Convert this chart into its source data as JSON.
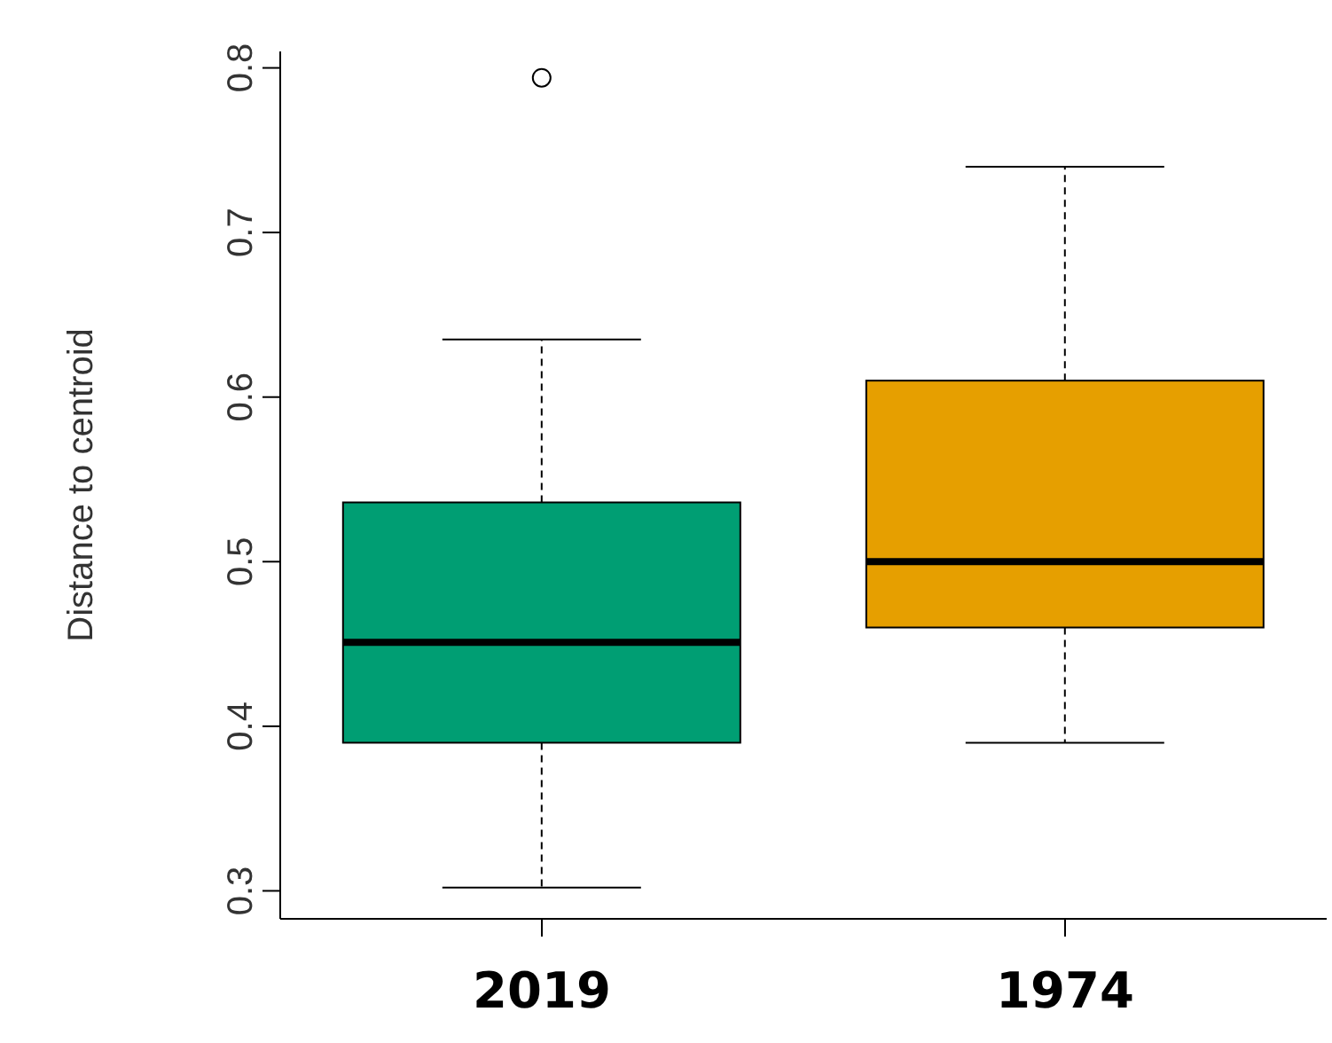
{
  "chart_data": {
    "type": "box",
    "ylabel": "Distance to centroid",
    "categories": [
      "2019",
      "1974"
    ],
    "colors": [
      "#009e73",
      "#e69f00"
    ],
    "boxes": [
      {
        "low": 0.302,
        "q1": 0.39,
        "median": 0.451,
        "q3": 0.536,
        "high": 0.635,
        "outliers": [
          0.794
        ]
      },
      {
        "low": 0.39,
        "q1": 0.46,
        "median": 0.5,
        "q3": 0.61,
        "high": 0.74
      }
    ],
    "ylim": [
      0.283,
      0.81
    ],
    "yticks": [
      0.3,
      0.4,
      0.5,
      0.6,
      0.7,
      0.8
    ],
    "grid": false
  }
}
